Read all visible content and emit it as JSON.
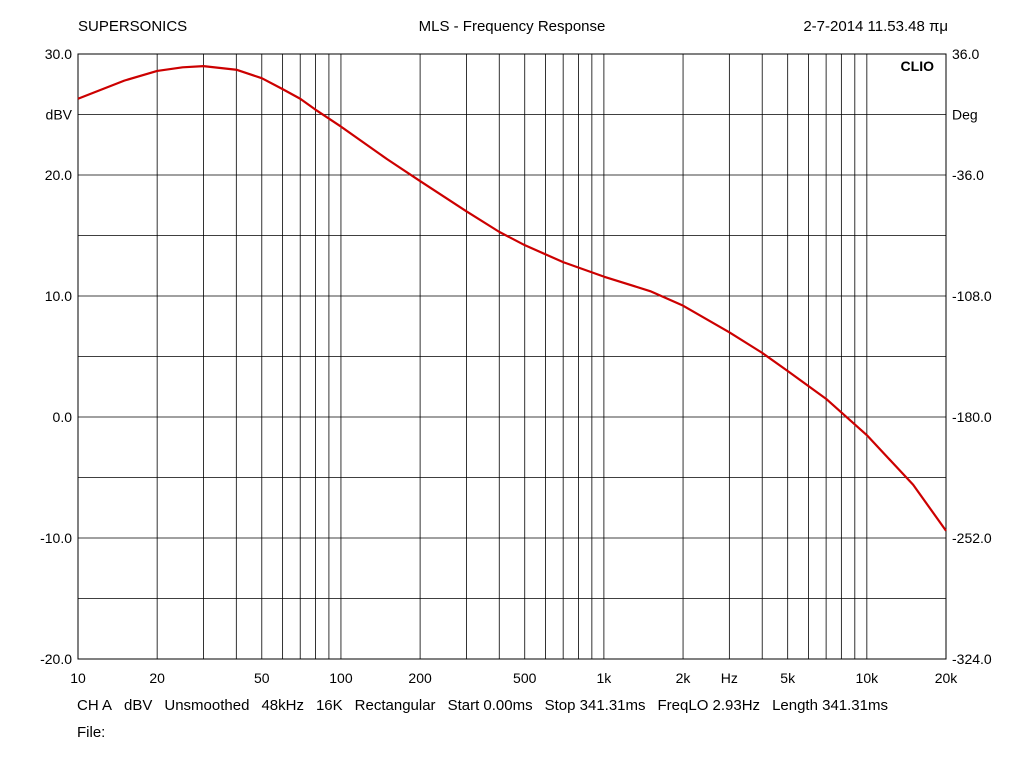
{
  "header": {
    "app_name": "SUPERSONICS",
    "title": "MLS - Frequency Response",
    "timestamp": "2-7-2014 11.53.48 πμ"
  },
  "brand": "CLIO",
  "footer": {
    "items": [
      "CH A",
      "dBV",
      "Unsmoothed",
      "48kHz",
      "16K",
      "Rectangular",
      "Start 0.00ms",
      "Stop 341.31ms",
      "FreqLO 2.93Hz",
      "Length 341.31ms"
    ],
    "file_label": "File:"
  },
  "colors": {
    "curve": "#cc0000",
    "grid": "#000000",
    "background": "#ffffff"
  },
  "chart_data": {
    "type": "line",
    "title": "MLS - Frequency Response",
    "xscale": "log",
    "xlim": [
      10,
      20000
    ],
    "ylim": [
      -20,
      30
    ],
    "ylabel": "dBV",
    "y2label": "Deg",
    "y2lim": [
      -324,
      36
    ],
    "xunit_label": "Hz",
    "x_tick_labels": [
      "10",
      "20",
      "50",
      "100",
      "200",
      "500",
      "1k",
      "2k",
      "5k",
      "10k",
      "20k"
    ],
    "y_tick_labels": [
      "30.0",
      "20.0",
      "10.0",
      "0.0",
      "-10.0",
      "-20.0"
    ],
    "y2_tick_labels": [
      "36.0",
      "-36.0",
      "-108.0",
      "-180.0",
      "-252.0",
      "-324.0"
    ],
    "grid": true,
    "series": [
      {
        "points": [
          [
            10,
            26.3
          ],
          [
            15,
            27.8
          ],
          [
            20,
            28.6
          ],
          [
            25,
            28.9
          ],
          [
            30,
            29.0
          ],
          [
            40,
            28.7
          ],
          [
            50,
            28.0
          ],
          [
            60,
            27.1
          ],
          [
            70,
            26.3
          ],
          [
            80,
            25.4
          ],
          [
            100,
            24.0
          ],
          [
            150,
            21.3
          ],
          [
            200,
            19.5
          ],
          [
            300,
            17.0
          ],
          [
            400,
            15.3
          ],
          [
            500,
            14.2
          ],
          [
            700,
            12.8
          ],
          [
            1000,
            11.6
          ],
          [
            1500,
            10.4
          ],
          [
            2000,
            9.2
          ],
          [
            3000,
            7.0
          ],
          [
            4000,
            5.3
          ],
          [
            5000,
            3.8
          ],
          [
            7000,
            1.5
          ],
          [
            10000,
            -1.5
          ],
          [
            15000,
            -5.6
          ],
          [
            20000,
            -9.4
          ]
        ]
      }
    ]
  }
}
